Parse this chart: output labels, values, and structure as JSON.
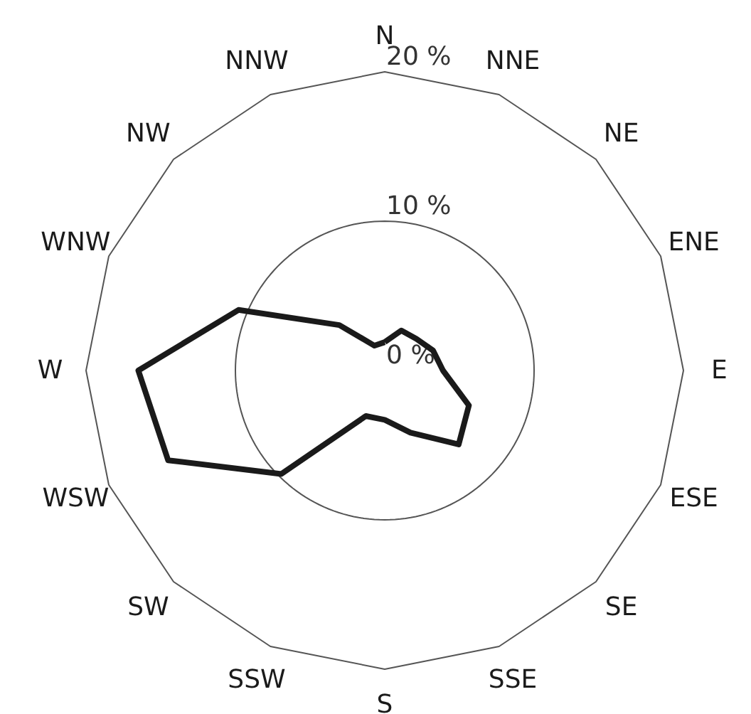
{
  "chart_data": {
    "type": "radar",
    "categories": [
      "N",
      "NNE",
      "NE",
      "ENE",
      "E",
      "ESE",
      "SE",
      "SSE",
      "S",
      "SSW",
      "SW",
      "WSW",
      "W",
      "WNW",
      "NW",
      "NNW"
    ],
    "series": [
      {
        "color": "#1a1a1a",
        "values": [
          1.9,
          2.9,
          3,
          3.5,
          3.9,
          6.1,
          7,
          4.5,
          3.3,
          3.3,
          9.8,
          15.7,
          16.5,
          10.6,
          4.3,
          1.8
        ]
      }
    ],
    "ylim": [
      0,
      20
    ],
    "yticks": [
      {
        "value": 0,
        "label": "0 %"
      },
      {
        "value": 10,
        "label": "10 %"
      },
      {
        "value": 20,
        "label": "20 %"
      }
    ]
  }
}
